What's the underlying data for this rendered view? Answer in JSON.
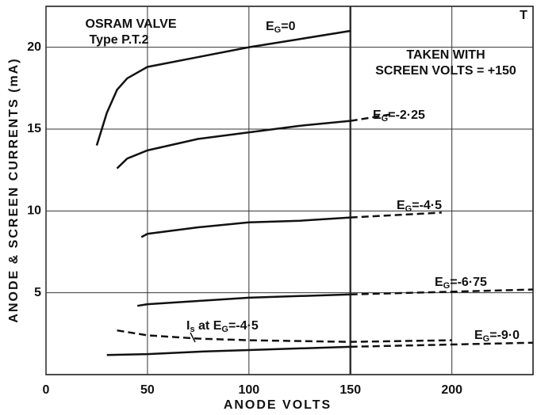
{
  "chart_data": {
    "type": "line",
    "xlabel": "ANODE VOLTS",
    "ylabel": "ANODE & SCREEN CURRENTS (mA)",
    "xlim": [
      0,
      240
    ],
    "xticks": [
      0,
      50,
      100,
      150,
      200
    ],
    "ylim": [
      0,
      22.5
    ],
    "yticks": [
      5,
      10,
      15,
      20
    ],
    "grid": true,
    "color": "#111111",
    "series": [
      {
        "style": "solid",
        "x": [
          25,
          30,
          35,
          40,
          50,
          75,
          100,
          125,
          150
        ],
        "values": [
          14,
          16,
          17.4,
          18.1,
          18.8,
          19.4,
          20,
          20.5,
          21
        ]
      },
      {
        "style": "solid",
        "x": [
          35,
          40,
          50,
          75,
          100,
          125,
          150
        ],
        "values": [
          12.6,
          13.2,
          13.7,
          14.4,
          14.8,
          15.2,
          15.5
        ]
      },
      {
        "style": "dashed",
        "x": [
          150,
          170
        ],
        "values": [
          15.5,
          15.9
        ]
      },
      {
        "style": "solid",
        "x": [
          47,
          50,
          75,
          100,
          125,
          150
        ],
        "values": [
          8.4,
          8.6,
          9.0,
          9.3,
          9.4,
          9.6
        ]
      },
      {
        "style": "dashed",
        "x": [
          150,
          195
        ],
        "values": [
          9.6,
          9.9
        ]
      },
      {
        "style": "solid",
        "x": [
          45,
          50,
          75,
          100,
          125,
          150
        ],
        "values": [
          4.2,
          4.3,
          4.5,
          4.7,
          4.8,
          4.9
        ]
      },
      {
        "style": "dashed",
        "x": [
          150,
          240
        ],
        "values": [
          4.9,
          5.2
        ]
      },
      {
        "style": "solid",
        "x": [
          30,
          50,
          75,
          100,
          125,
          150
        ],
        "values": [
          1.2,
          1.25,
          1.4,
          1.5,
          1.6,
          1.7
        ]
      },
      {
        "style": "dashed",
        "x": [
          150,
          240
        ],
        "values": [
          1.7,
          1.95
        ]
      },
      {
        "style": "dashed",
        "x": [
          35,
          50,
          75,
          100,
          150,
          200
        ],
        "values": [
          2.7,
          2.4,
          2.2,
          2.1,
          2.0,
          2.1
        ]
      }
    ],
    "curve_labels": [
      {
        "parts": [
          {
            "text": "E"
          },
          {
            "sub": "G"
          },
          {
            "text": "=0"
          }
        ]
      },
      {
        "parts": [
          {
            "text": "E"
          },
          {
            "sub": "G"
          },
          {
            "text": "=-2·25"
          }
        ]
      },
      {
        "parts": [
          {
            "text": "E"
          },
          {
            "sub": "G"
          },
          {
            "text": "=-4·5"
          }
        ]
      },
      {
        "parts": [
          {
            "text": "E"
          },
          {
            "sub": "G"
          },
          {
            "text": "=-6·75"
          }
        ]
      },
      {
        "parts": [
          {
            "text": "E"
          },
          {
            "sub": "G"
          },
          {
            "text": "=-9·0"
          }
        ]
      },
      {
        "parts": [
          {
            "text": "I"
          },
          {
            "sub": "s"
          },
          {
            "text": " at E"
          },
          {
            "sub": "G"
          },
          {
            "text": "=-4·5"
          }
        ]
      }
    ],
    "annotations": [
      "OSRAM VALVE",
      "Type  P.T.2",
      "TAKEN  WITH",
      "SCREEN VOLTS = +150",
      "T"
    ]
  }
}
